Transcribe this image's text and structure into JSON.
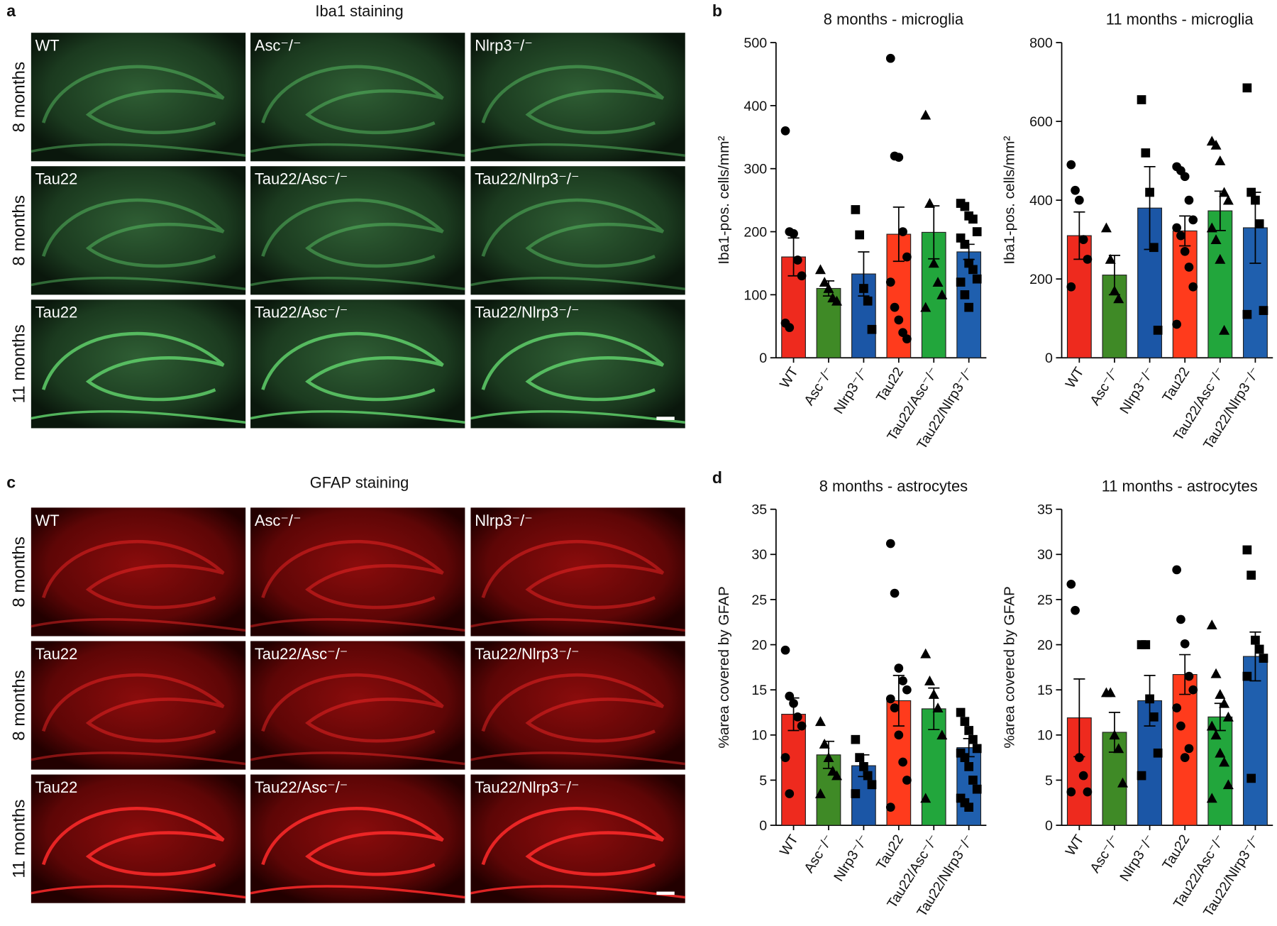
{
  "figure_panels": [
    {
      "letter": "a",
      "title": "Iba1 staining",
      "color": "green",
      "row_labels": [
        "8 months",
        "8 months",
        "11 months"
      ],
      "images": [
        [
          "WT",
          "Asc⁻/⁻",
          "Nlrp3⁻/⁻"
        ],
        [
          "Tau22",
          "Tau22/Asc⁻/⁻",
          "Tau22/Nlrp3⁻/⁻"
        ],
        [
          "Tau22",
          "Tau22/Asc⁻/⁻",
          "Tau22/Nlrp3⁻/⁻"
        ]
      ]
    },
    {
      "letter": "c",
      "title": "GFAP staining",
      "color": "red",
      "row_labels": [
        "8 months",
        "8 months",
        "11 months"
      ],
      "images": [
        [
          "WT",
          "Asc⁻/⁻",
          "Nlrp3⁻/⁻"
        ],
        [
          "Tau22",
          "Tau22/Asc⁻/⁻",
          "Tau22/Nlrp3⁻/⁻"
        ],
        [
          "Tau22",
          "Tau22/Asc⁻/⁻",
          "Tau22/Nlrp3⁻/⁻"
        ]
      ]
    }
  ],
  "chart_letters": [
    "b",
    "d"
  ],
  "chart_data": [
    {
      "type": "bar",
      "title": "8 months - microglia",
      "y_label": "Iba1-pos. cells/mm²",
      "categories": [
        "WT",
        "Asc⁻/⁻",
        "Nlrp3⁻/⁻",
        "Tau22",
        "Tau22/Asc⁻/⁻",
        "Tau22/Nlrp3⁻/⁻"
      ],
      "colors": [
        "#ee2a1e",
        "#3f8a26",
        "#1b56a6",
        "#ff3b1c",
        "#22a63c",
        "#1f5fae"
      ],
      "markers": [
        "circle",
        "triangle",
        "square",
        "circle",
        "triangle",
        "square"
      ],
      "values": [
        160,
        110,
        133,
        196,
        199,
        168
      ],
      "errors": [
        30,
        12,
        35,
        43,
        42,
        12
      ],
      "points": [
        [
          360,
          200,
          197,
          155,
          130,
          55,
          48
        ],
        [
          140,
          120,
          110,
          95,
          90
        ],
        [
          235,
          195,
          110,
          90,
          45
        ],
        [
          475,
          320,
          318,
          200,
          160,
          120,
          80,
          60,
          40,
          30
        ],
        [
          385,
          245,
          150,
          120,
          100,
          80
        ],
        [
          245,
          240,
          225,
          220,
          200,
          190,
          180,
          150,
          140,
          125,
          120,
          100,
          80
        ]
      ],
      "ylim": [
        0,
        500
      ],
      "yticks": [
        0,
        100,
        200,
        300,
        400,
        500
      ]
    },
    {
      "type": "bar",
      "title": "11 months - microglia",
      "y_label": "Iba1-pos. cells/mm²",
      "categories": [
        "WT",
        "Asc⁻/⁻",
        "Nlrp3⁻/⁻",
        "Tau22",
        "Tau22/Asc⁻/⁻",
        "Tau22/Nlrp3⁻/⁻"
      ],
      "colors": [
        "#ee2a1e",
        "#3f8a26",
        "#1b56a6",
        "#ff3b1c",
        "#22a63c",
        "#1f5fae"
      ],
      "markers": [
        "circle",
        "triangle",
        "square",
        "circle",
        "triangle",
        "square"
      ],
      "values": [
        310,
        210,
        380,
        322,
        373,
        330
      ],
      "errors": [
        60,
        50,
        105,
        38,
        50,
        90
      ],
      "points": [
        [
          490,
          425,
          400,
          300,
          250,
          180
        ],
        [
          330,
          250,
          170,
          150
        ],
        [
          655,
          520,
          420,
          280,
          70
        ],
        [
          485,
          475,
          460,
          400,
          350,
          330,
          310,
          270,
          230,
          180,
          85
        ],
        [
          550,
          540,
          500,
          420,
          400,
          330,
          300,
          250,
          70
        ],
        [
          685,
          420,
          400,
          340,
          120,
          110
        ]
      ],
      "ylim": [
        0,
        800
      ],
      "yticks": [
        0,
        200,
        400,
        600,
        800
      ]
    },
    {
      "type": "bar",
      "title": "8 months - astrocytes",
      "y_label": "%area covered by GFAP",
      "categories": [
        "WT",
        "Asc⁻/⁻",
        "Nlrp3⁻/⁻",
        "Tau22",
        "Tau22/Asc⁻/⁻",
        "Tau22/Nlrp3⁻/⁻"
      ],
      "colors": [
        "#ee2a1e",
        "#3f8a26",
        "#1b56a6",
        "#ff3b1c",
        "#22a63c",
        "#1f5fae"
      ],
      "markers": [
        "circle",
        "triangle",
        "square",
        "circle",
        "triangle",
        "square"
      ],
      "values": [
        12.3,
        7.8,
        6.6,
        13.8,
        12.9,
        8.6
      ],
      "errors": [
        1.8,
        1.5,
        1.2,
        2.8,
        2.3,
        1
      ],
      "points": [
        [
          19.4,
          14.3,
          13.5,
          12,
          11,
          7.5,
          3.5
        ],
        [
          11.5,
          9,
          7.5,
          6,
          5.5,
          3.5
        ],
        [
          9.5,
          7.5,
          6.5,
          5.5,
          4.5,
          3.5
        ],
        [
          31.2,
          25.7,
          17.4,
          16,
          15,
          14,
          13,
          10,
          7,
          5,
          2
        ],
        [
          19,
          16,
          14.5,
          13,
          10,
          3
        ],
        [
          12.5,
          11.5,
          10.5,
          9.5,
          8.5,
          8,
          7.5,
          6.5,
          5,
          4,
          3,
          2.5,
          2
        ]
      ],
      "ylim": [
        0,
        35
      ],
      "yticks": [
        0,
        5,
        10,
        15,
        20,
        25,
        30,
        35
      ]
    },
    {
      "type": "bar",
      "title": "11 months - astrocytes",
      "y_label": "%area covered by GFAP",
      "categories": [
        "WT",
        "Asc⁻/⁻",
        "Nlrp3⁻/⁻",
        "Tau22",
        "Tau22/Asc⁻/⁻",
        "Tau22/Nlrp3⁻/⁻"
      ],
      "colors": [
        "#ee2a1e",
        "#3f8a26",
        "#1b56a6",
        "#ff3b1c",
        "#22a63c",
        "#1f5fae"
      ],
      "markers": [
        "circle",
        "triangle",
        "square",
        "circle",
        "triangle",
        "square"
      ],
      "values": [
        11.9,
        10.3,
        13.8,
        16.7,
        12,
        18.7
      ],
      "errors": [
        4.3,
        2.2,
        2.8,
        2.2,
        1.5,
        2.7
      ],
      "points": [
        [
          26.7,
          23.8,
          7.5,
          5.5,
          3.7,
          3.7
        ],
        [
          14.7,
          14.7,
          10,
          8.5,
          4.7
        ],
        [
          20,
          20,
          14,
          12,
          8,
          5.5
        ],
        [
          28.3,
          22.8,
          20.1,
          16.5,
          15,
          13,
          11,
          7.5,
          8.5
        ],
        [
          22.2,
          16.8,
          14.5,
          13.5,
          12,
          11,
          10,
          8,
          7,
          4.5,
          3
        ],
        [
          30.5,
          27.7,
          20.5,
          19.5,
          18.5,
          16.5,
          5.2
        ]
      ],
      "ylim": [
        0,
        35
      ],
      "yticks": [
        0,
        5,
        10,
        15,
        20,
        25,
        30,
        35
      ]
    }
  ]
}
